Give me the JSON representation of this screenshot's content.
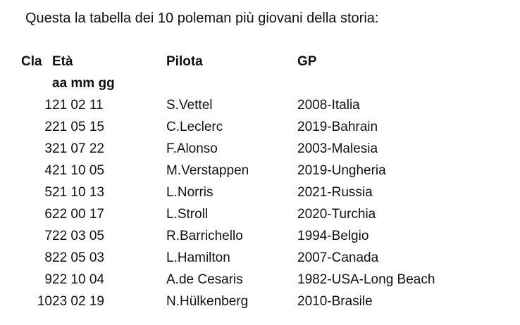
{
  "intro": "Questa la tabella dei 10 poleman più giovani della storia:",
  "columns": {
    "pos": "Cla",
    "age": "Età",
    "age_format": "aa mm gg",
    "driver": "Pilota",
    "gp": "GP"
  },
  "rows": [
    {
      "pos": "1",
      "age": "21 02 11",
      "driver": "S.Vettel",
      "gp": "2008-Italia"
    },
    {
      "pos": "2",
      "age": "21 05 15",
      "driver": "C.Leclerc",
      "gp": "2019-Bahrain"
    },
    {
      "pos": "3",
      "age": "21 07 22",
      "driver": "F.Alonso",
      "gp": "2003-Malesia"
    },
    {
      "pos": "4",
      "age": "21 10 05",
      "driver": "M.Verstappen",
      "gp": "2019-Ungheria"
    },
    {
      "pos": "5",
      "age": "21 10 13",
      "driver": "L.Norris",
      "gp": "2021-Russia"
    },
    {
      "pos": "6",
      "age": "22 00 17",
      "driver": "L.Stroll",
      "gp": "2020-Turchia"
    },
    {
      "pos": "7",
      "age": "22 03 05",
      "driver": "R.Barrichello",
      "gp": "1994-Belgio"
    },
    {
      "pos": "8",
      "age": "22 05 03",
      "driver": "L.Hamilton",
      "gp": "2007-Canada"
    },
    {
      "pos": "9",
      "age": "22 10 04",
      "driver": "A.de Cesaris",
      "gp": "1982-USA-Long Beach"
    },
    {
      "pos": "10",
      "age": "23 02 19",
      "driver": "N.Hülkenberg",
      "gp": "2010-Brasile"
    }
  ]
}
